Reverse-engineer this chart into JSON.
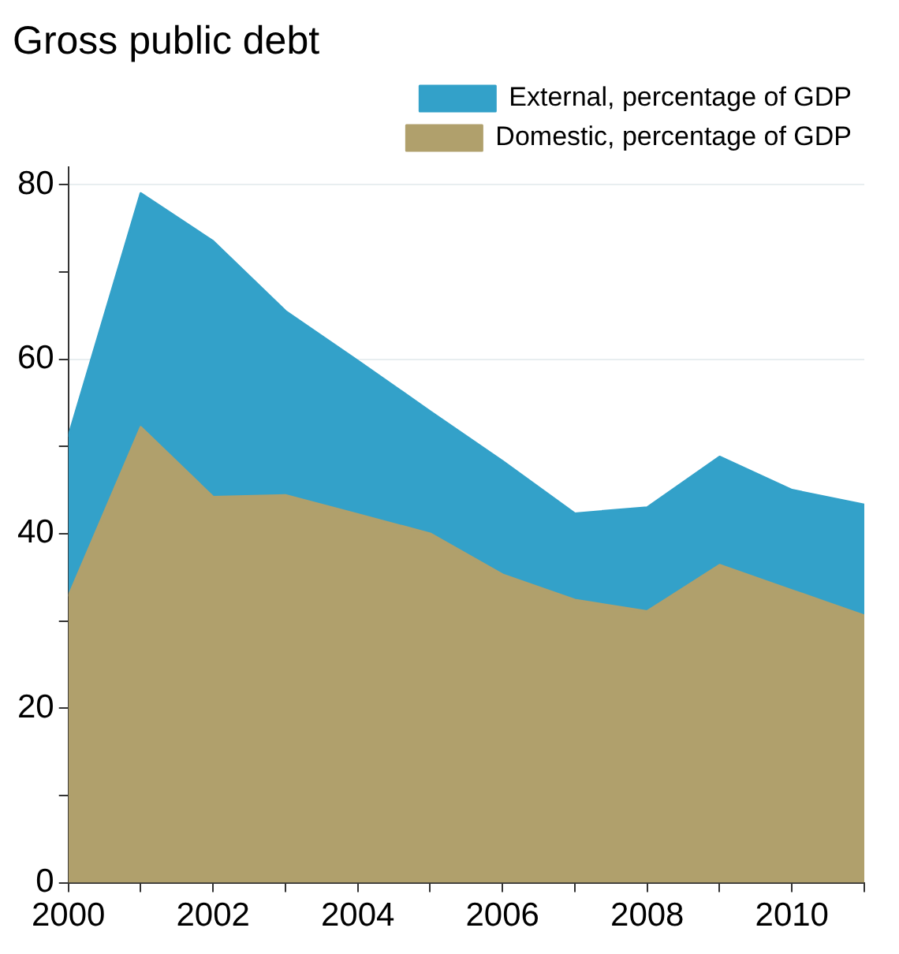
{
  "chart_data": {
    "type": "area",
    "title": "Gross public debt",
    "stacked": true,
    "x": [
      2000,
      2001,
      2002,
      2003,
      2004,
      2005,
      2006,
      2007,
      2008,
      2009,
      2010,
      2011
    ],
    "series": [
      {
        "name": "Domestic, percentage of GDP",
        "color": "#b0a06c",
        "values": [
          32.8,
          52.2,
          44.2,
          44.4,
          42.2,
          40.0,
          35.3,
          32.4,
          31.1,
          36.4,
          33.5,
          30.6
        ]
      },
      {
        "name": "External, percentage of GDP",
        "color": "#33a1c9",
        "values": [
          18.3,
          26.8,
          29.3,
          21.1,
          17.6,
          14.0,
          13.0,
          9.9,
          11.9,
          12.4,
          11.5,
          12.7
        ]
      }
    ],
    "xlim": [
      2000,
      2011
    ],
    "xticks": [
      2000,
      {
        "value": 2001,
        "label": null
      },
      2002,
      {
        "value": 2003,
        "label": null
      },
      2004,
      {
        "value": 2005,
        "label": null
      },
      2006,
      {
        "value": 2007,
        "label": null
      },
      2008,
      {
        "value": 2009,
        "label": null
      },
      2010,
      {
        "value": 2011,
        "label": null
      }
    ],
    "ylim": [
      0,
      82
    ],
    "yticks": [
      0,
      {
        "value": 10,
        "label": null
      },
      20,
      {
        "value": 30,
        "label": null
      },
      40,
      {
        "value": 50,
        "label": null
      },
      60,
      {
        "value": 70,
        "label": null
      },
      80
    ],
    "grid": "y",
    "legend": "top right"
  }
}
